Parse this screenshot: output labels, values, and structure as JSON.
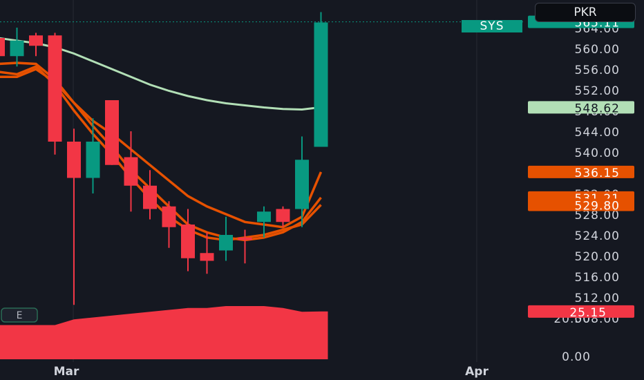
{
  "header": {
    "currency": "PKR",
    "symbol": "SYS"
  },
  "colors": {
    "background": "#151821",
    "up": "#089981",
    "down": "#f23645",
    "ma_slow": "#b2dfb6",
    "ma_fast": "#e65100",
    "price_line": "#089981"
  },
  "markers": {
    "event_label": "E"
  },
  "chart_data": {
    "type": "candlestick",
    "price_axis": {
      "ticks": [
        "564.00",
        "560.00",
        "556.00",
        "552.00",
        "548.00",
        "544.00",
        "540.00",
        "536.00",
        "532.00",
        "528.00",
        "524.00",
        "520.00",
        "516.00",
        "512.00",
        "508.00"
      ],
      "range": [
        506,
        567
      ]
    },
    "volume_axis": {
      "ticks": [
        "20.00",
        "0.00"
      ],
      "range": [
        0,
        28
      ]
    },
    "x_axis": {
      "ticks": [
        "Mar",
        "Apr"
      ]
    },
    "last_price": "565.11",
    "indicator_labels": [
      {
        "value": "548.62",
        "color": "#b2dfb6",
        "text_color": "#131722"
      },
      {
        "value": "536.15",
        "color": "#e65100",
        "text_color": "#ffffff"
      },
      {
        "value": "531.21",
        "color": "#e65100",
        "text_color": "#ffffff"
      },
      {
        "value": "529.80",
        "color": "#e65100",
        "text_color": "#ffffff"
      }
    ],
    "volume_label": "25.15",
    "candles": [
      {
        "o": 562.0,
        "h": 563.5,
        "l": 553.0,
        "c": 558.5
      },
      {
        "o": 558.5,
        "h": 564.0,
        "l": 556.5,
        "c": 561.5
      },
      {
        "o": 562.5,
        "h": 563.0,
        "l": 558.5,
        "c": 560.5
      },
      {
        "o": 562.5,
        "h": 563.0,
        "l": 539.5,
        "c": 542.0
      },
      {
        "o": 542.0,
        "h": 544.5,
        "l": 510.5,
        "c": 535.0
      },
      {
        "o": 535.0,
        "h": 546.5,
        "l": 532.0,
        "c": 542.0
      },
      {
        "o": 550.0,
        "h": 550.0,
        "l": 537.5,
        "c": 537.5
      },
      {
        "o": 539.0,
        "h": 544.0,
        "l": 528.5,
        "c": 533.5
      },
      {
        "o": 533.5,
        "h": 536.5,
        "l": 527.0,
        "c": 529.0
      },
      {
        "o": 529.5,
        "h": 530.5,
        "l": 521.5,
        "c": 525.5
      },
      {
        "o": 526.0,
        "h": 529.0,
        "l": 517.0,
        "c": 519.5
      },
      {
        "o": 520.5,
        "h": 524.5,
        "l": 516.5,
        "c": 519.0
      },
      {
        "o": 521.0,
        "h": 527.5,
        "l": 519.0,
        "c": 524.0
      },
      {
        "o": 523.5,
        "h": 525.0,
        "l": 518.5,
        "c": 523.0
      },
      {
        "o": 526.5,
        "h": 529.5,
        "l": 523.5,
        "c": 528.5
      },
      {
        "o": 529.0,
        "h": 529.5,
        "l": 525.5,
        "c": 526.5
      },
      {
        "o": 529.0,
        "h": 543.0,
        "l": 525.5,
        "c": 538.5
      },
      {
        "o": 541.0,
        "h": 567.0,
        "l": 541.0,
        "c": 565.0
      }
    ],
    "volume": [
      18,
      18,
      18,
      18,
      21,
      22,
      23,
      24,
      25,
      26,
      27,
      27,
      28,
      28,
      28,
      27,
      25,
      25.15
    ],
    "ma_slow": [
      562.0,
      561.5,
      561.0,
      560.2,
      559.0,
      557.5,
      556.0,
      554.5,
      553.0,
      551.8,
      550.8,
      550.0,
      549.4,
      549.0,
      548.6,
      548.3,
      548.2,
      548.62
    ],
    "ma_fast_1": [
      557.0,
      557.2,
      557.0,
      554.0,
      549.5,
      546.0,
      543.5,
      540.5,
      537.5,
      534.5,
      531.5,
      529.5,
      528.0,
      526.5,
      526.0,
      525.5,
      527.5,
      536.15
    ],
    "ma_fast_2": [
      554.5,
      554.5,
      556.0,
      553.5,
      549.5,
      545.0,
      541.0,
      536.5,
      533.0,
      529.5,
      526.0,
      524.5,
      523.5,
      523.0,
      523.5,
      524.5,
      526.5,
      531.21
    ],
    "ma_fast_3": [
      555.5,
      555.0,
      556.5,
      553.0,
      548.0,
      543.5,
      539.5,
      535.0,
      531.0,
      527.5,
      525.0,
      523.5,
      523.0,
      523.5,
      524.0,
      525.0,
      526.0,
      529.8
    ]
  }
}
